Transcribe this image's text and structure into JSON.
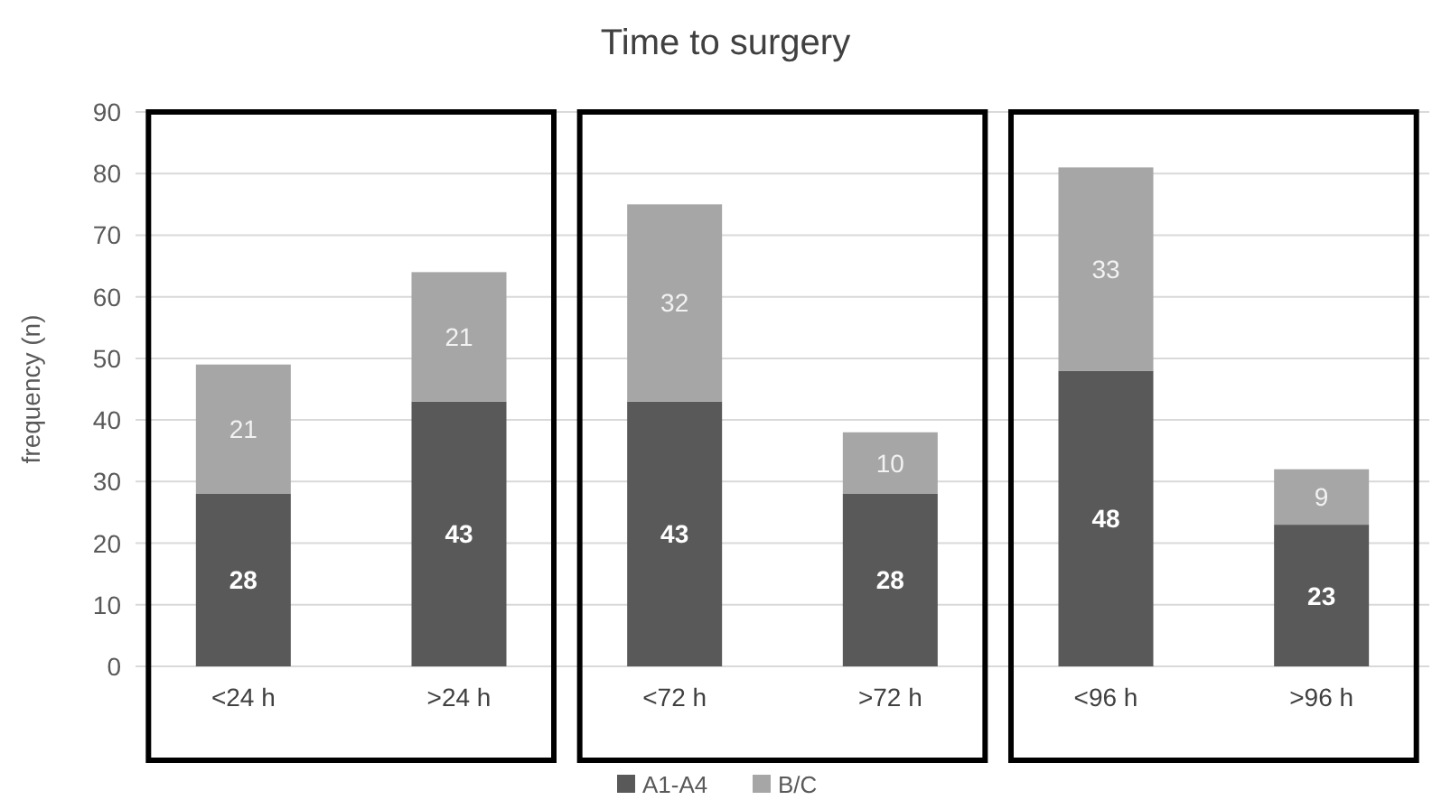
{
  "chart_data": {
    "type": "bar",
    "title": "Time to surgery",
    "ylabel": "frequency (n)",
    "categories": [
      "<24 h",
      ">24 h",
      "<72 h",
      ">72 h",
      "<96 h",
      ">96 h"
    ],
    "stacked": true,
    "series": [
      {
        "name": "A1-A4",
        "color": "#595959",
        "values": [
          28,
          43,
          43,
          28,
          48,
          23
        ]
      },
      {
        "name": "B/C",
        "color": "#a6a6a6",
        "values": [
          21,
          21,
          32,
          10,
          33,
          9
        ]
      }
    ],
    "ylim": [
      0,
      90
    ],
    "yticks": [
      0,
      10,
      20,
      30,
      40,
      50,
      60,
      70,
      80,
      90
    ],
    "grid": "y",
    "legend": "bottom",
    "data_labels": true
  }
}
